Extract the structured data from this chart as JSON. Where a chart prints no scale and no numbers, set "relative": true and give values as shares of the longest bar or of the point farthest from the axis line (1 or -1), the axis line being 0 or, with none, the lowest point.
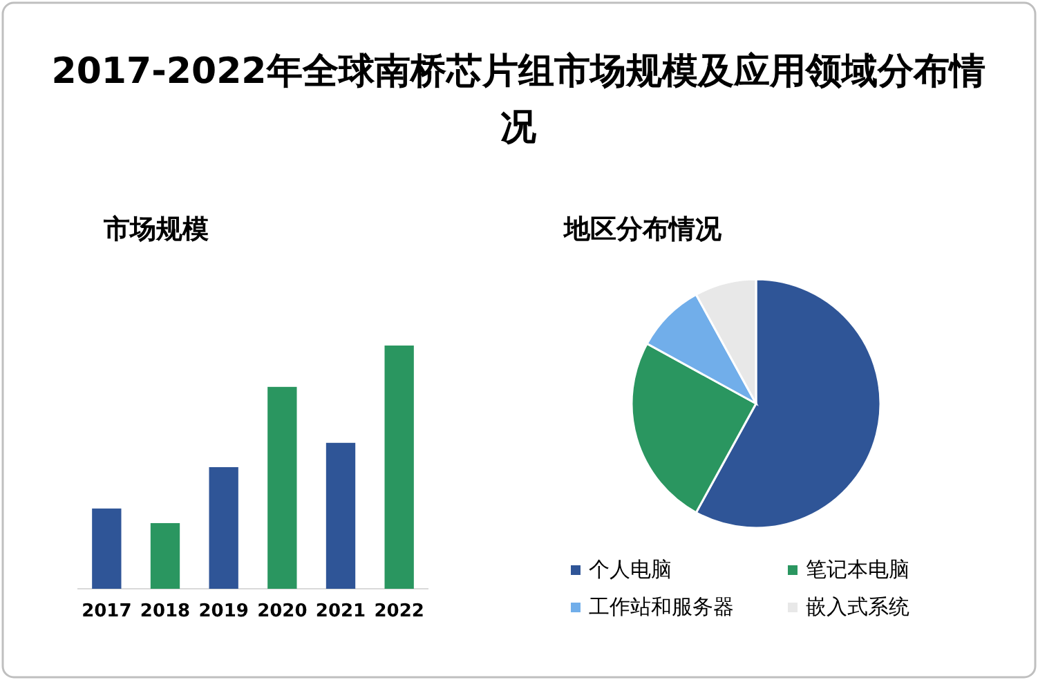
{
  "chart_data": [
    {
      "type": "bar",
      "title": "2017-2022年全球南桥芯片组市场规模及应用领域分布情况",
      "subtitle": "市场规模",
      "categories": [
        "2017",
        "2018",
        "2019",
        "2020",
        "2021",
        "2022"
      ],
      "values": [
        0.33,
        0.27,
        0.5,
        0.83,
        0.6,
        1
      ],
      "colors": [
        "#2f5597",
        "#2a9660",
        "#2f5597",
        "#2a9660",
        "#2f5597",
        "#2a9660"
      ],
      "relative": true
    },
    {
      "type": "pie",
      "title": "地区分布情况",
      "categories": [
        "个人电脑",
        "笔记本电脑",
        "工作站和服务器",
        "嵌入式系统"
      ],
      "values": [
        58,
        25,
        9,
        8
      ],
      "colors": [
        "#2f5597",
        "#2a9660",
        "#71aeea",
        "#e8e8e8"
      ],
      "legend": "bottom"
    }
  ]
}
